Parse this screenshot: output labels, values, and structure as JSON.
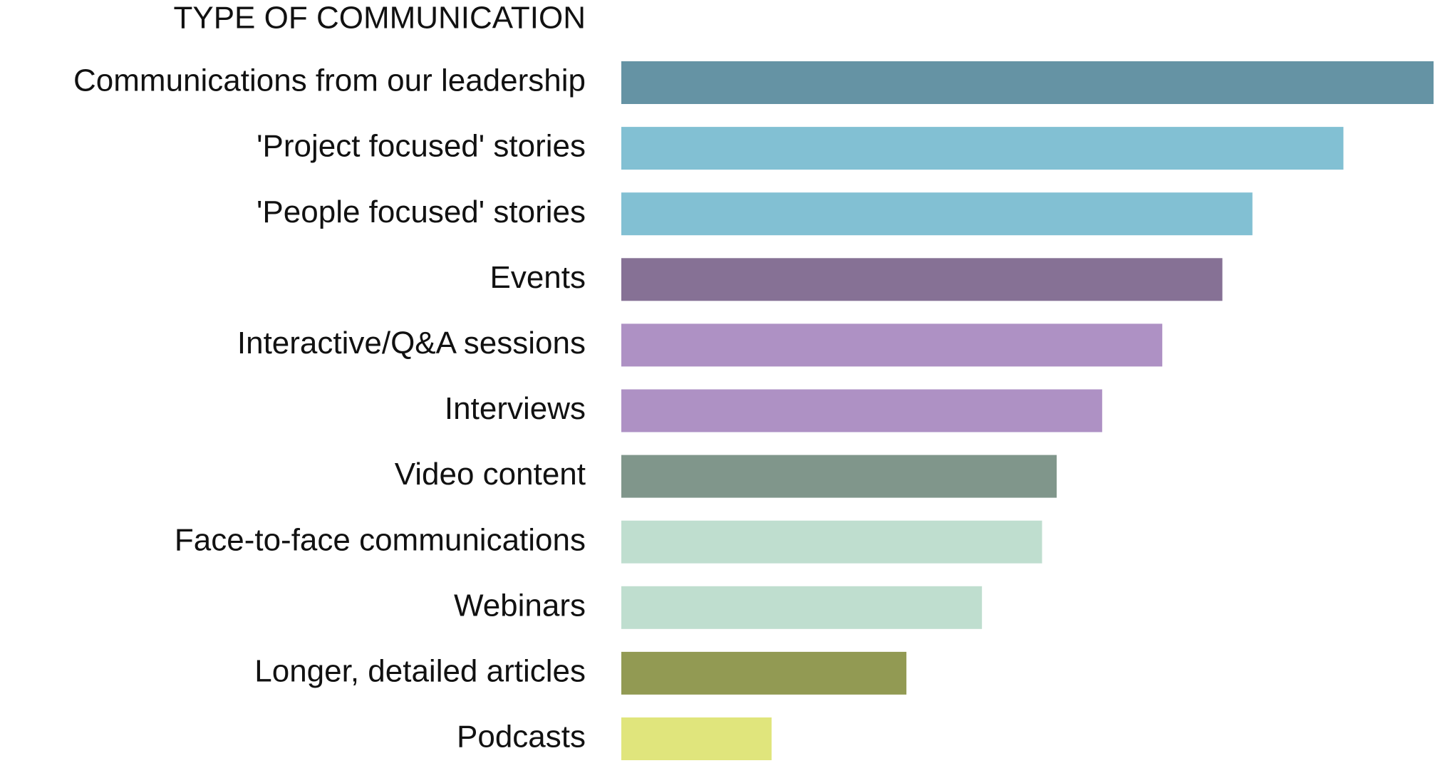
{
  "chart_data": {
    "type": "bar",
    "orientation": "horizontal",
    "title": "TYPE OF COMMUNICATION",
    "categories": [
      "Communications from our leadership",
      "'Project focused' stories",
      "'People focused' stories",
      "Events",
      "Interactive/Q&A sessions",
      "Interviews",
      "Video content",
      "Face-to-face communications",
      "Webinars",
      "Longer, detailed articles",
      "Podcasts"
    ],
    "values": [
      100,
      88.9,
      77.7,
      74,
      66.6,
      59.2,
      53.6,
      51.8,
      44.4,
      35.1,
      18.5
    ],
    "colors": [
      "#6593a4",
      "#82c0d3",
      "#82c0d3",
      "#867195",
      "#ae91c4",
      "#ae91c4",
      "#80968b",
      "#bfdecf",
      "#bfdecf",
      "#929a53",
      "#e0e57c"
    ]
  }
}
